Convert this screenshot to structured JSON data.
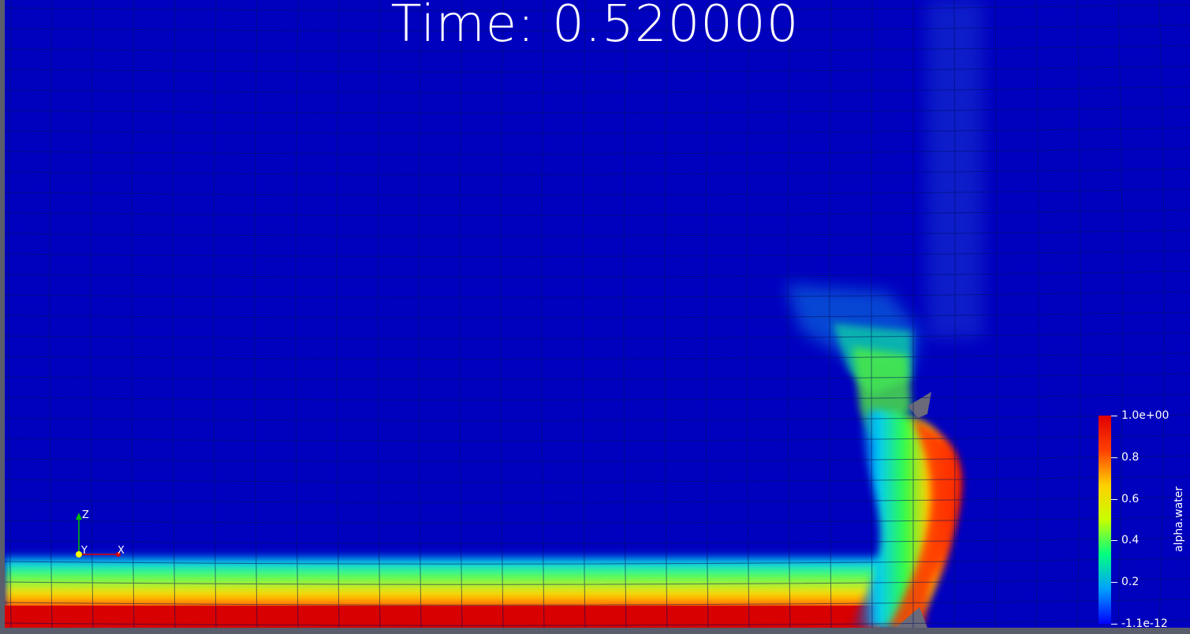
{
  "time_label": "Time: 0.520000",
  "axes": {
    "z": "Z",
    "y": "Y",
    "x": "X"
  },
  "colorbar": {
    "title": "alpha.water",
    "labels": [
      "1.0e+00",
      "0.8",
      "0.6",
      "0.4",
      "0.2",
      "-1.1e-12"
    ],
    "colormap": [
      "#0000ff",
      "#00a0ff",
      "#00ff80",
      "#c8ff00",
      "#ffd000",
      "#ff4000",
      "#e00000"
    ]
  },
  "colors": {
    "background": "#5a5d6b",
    "low": "#0000bf",
    "high": "#e00000"
  }
}
